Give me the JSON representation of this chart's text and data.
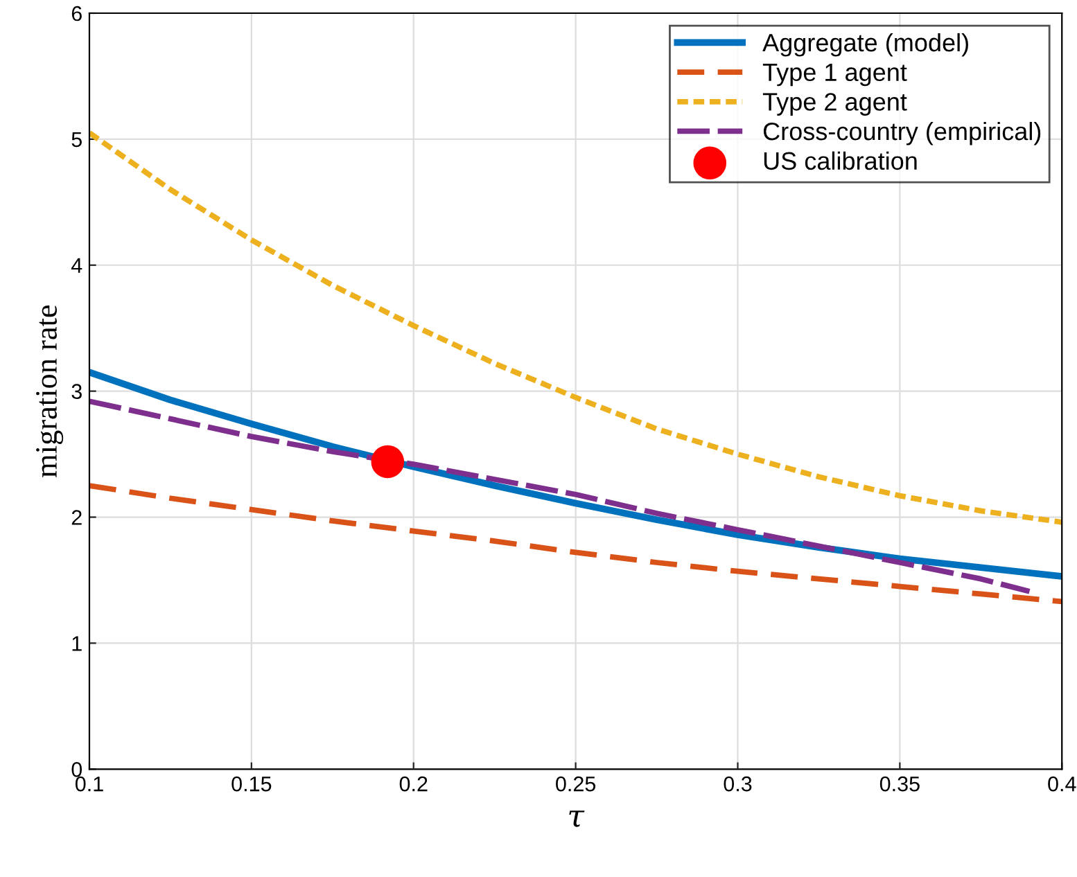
{
  "chart_data": {
    "type": "line",
    "xlabel": "τ",
    "ylabel": "migration rate",
    "xlim": [
      0.1,
      0.4
    ],
    "xticks": [
      0.1,
      0.15,
      0.2,
      0.25,
      0.3,
      0.35,
      0.4
    ],
    "ylim": [
      0,
      6
    ],
    "yticks": [
      0,
      1,
      2,
      3,
      4,
      5,
      6
    ],
    "grid": true,
    "legend": "top right",
    "series": [
      {
        "name": "Aggregate (model)",
        "color": "#0072bd",
        "line_style": "solid",
        "x": [
          0.1,
          0.125,
          0.15,
          0.175,
          0.2,
          0.225,
          0.25,
          0.275,
          0.3,
          0.325,
          0.35,
          0.375,
          0.4
        ],
        "values": [
          3.15,
          2.93,
          2.74,
          2.56,
          2.4,
          2.25,
          2.11,
          1.98,
          1.86,
          1.76,
          1.67,
          1.6,
          1.53
        ]
      },
      {
        "name": "Type 1 agent",
        "color": "#d95319",
        "line_style": "dashed",
        "x": [
          0.1,
          0.125,
          0.15,
          0.175,
          0.2,
          0.225,
          0.25,
          0.275,
          0.3,
          0.325,
          0.35,
          0.375,
          0.4
        ],
        "values": [
          2.25,
          2.15,
          2.06,
          1.97,
          1.89,
          1.81,
          1.72,
          1.64,
          1.57,
          1.51,
          1.45,
          1.39,
          1.33
        ]
      },
      {
        "name": "Type 2 agent",
        "color": "#edb120",
        "line_style": "dotted",
        "x": [
          0.1,
          0.125,
          0.15,
          0.175,
          0.2,
          0.225,
          0.25,
          0.275,
          0.3,
          0.325,
          0.35,
          0.375,
          0.4
        ],
        "values": [
          5.05,
          4.6,
          4.2,
          3.84,
          3.52,
          3.22,
          2.95,
          2.7,
          2.5,
          2.32,
          2.17,
          2.05,
          1.96
        ]
      },
      {
        "name": "Cross-country (empirical)",
        "color": "#7e2f8e",
        "line_style": "longdash",
        "x": [
          0.1,
          0.125,
          0.15,
          0.175,
          0.2,
          0.225,
          0.25,
          0.275,
          0.3,
          0.325,
          0.35,
          0.375,
          0.39
        ],
        "values": [
          2.92,
          2.78,
          2.64,
          2.52,
          2.42,
          2.3,
          2.18,
          2.03,
          1.9,
          1.77,
          1.64,
          1.51,
          1.41
        ]
      },
      {
        "name": "US calibration",
        "type": "scatter",
        "marker": "circle",
        "color": "#ff0000",
        "x": [
          0.192
        ],
        "values": [
          2.44
        ]
      }
    ]
  }
}
